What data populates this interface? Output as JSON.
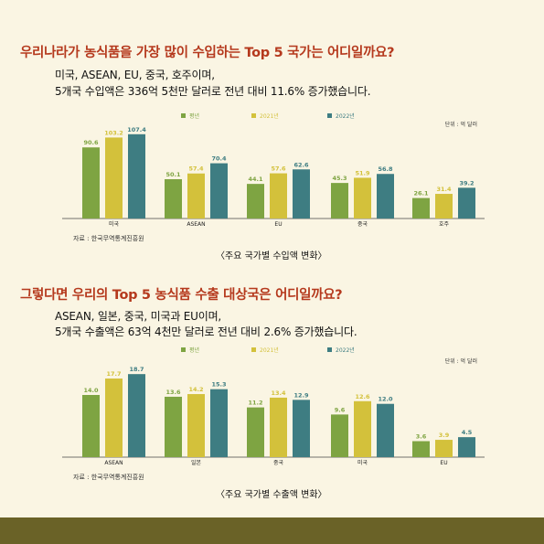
{
  "section1": {
    "title": "우리나라가 농식품을 가장 많이 수입하는 Top 5 국가는 어디일까요?",
    "desc_line1": "미국, ASEAN, EU, 중국, 호주이며,",
    "desc_line2": "5개국 수입액은 336억 5천만 달러로 전년 대비 11.6% 증가했습니다.",
    "source": "자료 : 한국무역통계진흥원",
    "caption": "〈주요 국가별 수입액 변화〉"
  },
  "section2": {
    "title": "그렇다면 우리의 Top 5 농식품 수출 대상국은 어디일까요?",
    "desc_line1": "ASEAN, 일본, 중국, 미국과 EU이며,",
    "desc_line2": "5개국 수출액은 63억 4천만 달러로 전년 대비 2.6% 증가했습니다.",
    "source": "자료 : 한국무역통계진흥원",
    "caption": "〈주요 국가별 수출액 변화〉"
  },
  "colors": {
    "s1": "#7ea442",
    "s2": "#d3c13b",
    "s3": "#3e7d82",
    "title": "#b5391d",
    "footer": "#6a6227"
  },
  "chart_data": [
    {
      "type": "bar",
      "unit_label": "단위 : 억 달러",
      "categories": [
        "미국",
        "ASEAN",
        "EU",
        "중국",
        "호주"
      ],
      "series": [
        {
          "name": "평년",
          "values": [
            90.6,
            50.1,
            44.1,
            45.3,
            26.1
          ]
        },
        {
          "name": "2021년",
          "values": [
            103.2,
            57.4,
            57.6,
            51.9,
            31.4
          ]
        },
        {
          "name": "2022년",
          "values": [
            107.4,
            70.4,
            62.6,
            56.8,
            39.2
          ]
        }
      ],
      "ylim": [
        0,
        120
      ],
      "grid": false,
      "legend": "top"
    },
    {
      "type": "bar",
      "unit_label": "단위 : 억 달러",
      "categories": [
        "ASEAN",
        "일본",
        "중국",
        "미국",
        "EU"
      ],
      "series": [
        {
          "name": "평년",
          "values": [
            14.0,
            13.6,
            11.2,
            9.6,
            3.6
          ]
        },
        {
          "name": "2021년",
          "values": [
            17.7,
            14.2,
            13.4,
            12.6,
            3.9
          ]
        },
        {
          "name": "2022년",
          "values": [
            18.7,
            15.3,
            12.9,
            12.0,
            4.5
          ]
        }
      ],
      "ylim": [
        0,
        21
      ],
      "grid": false,
      "legend": "top"
    }
  ]
}
